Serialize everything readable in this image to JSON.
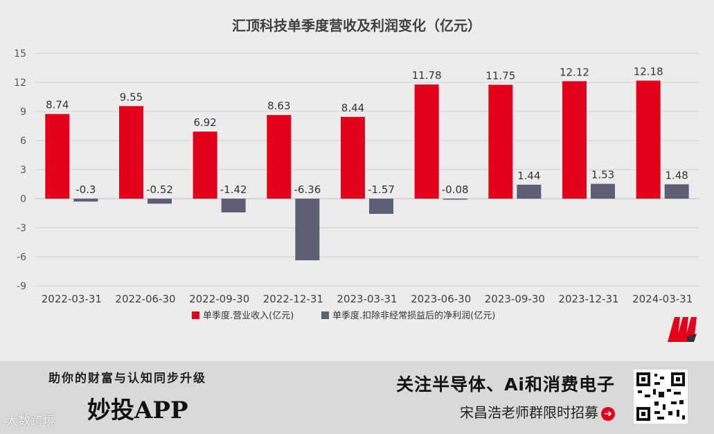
{
  "chart_data": {
    "type": "bar",
    "title": "汇顶科技单季度营收及利润变化（亿元）",
    "categories": [
      "2022-03-31",
      "2022-06-30",
      "2022-09-30",
      "2022-12-31",
      "2023-03-31",
      "2023-06-30",
      "2023-09-30",
      "2023-12-31",
      "2024-03-31"
    ],
    "series": [
      {
        "name": "单季度.营业收入(亿元)",
        "color": "#e3001b",
        "values": [
          8.74,
          9.55,
          6.92,
          8.63,
          8.44,
          11.78,
          11.75,
          12.12,
          12.18
        ]
      },
      {
        "name": "单季度.扣除非经常损益后的净利润(亿元)",
        "color": "#5d6073",
        "values": [
          -0.3,
          -0.52,
          -1.42,
          -6.36,
          -1.57,
          -0.08,
          1.44,
          1.53,
          1.48
        ]
      }
    ],
    "ylim": [
      -9,
      15
    ],
    "yticks": [
      15,
      12,
      9,
      6,
      3,
      0,
      -3,
      -6,
      -9
    ],
    "legend": "bottom",
    "grid": true
  },
  "footer": {
    "slogan": "助你的财富与认知同步升级",
    "app_name": "妙投APP",
    "watermark": "大数跨境",
    "headline": "关注半导体、Ai和消费电子",
    "subline": "宋昌浩老师群限时招募"
  }
}
